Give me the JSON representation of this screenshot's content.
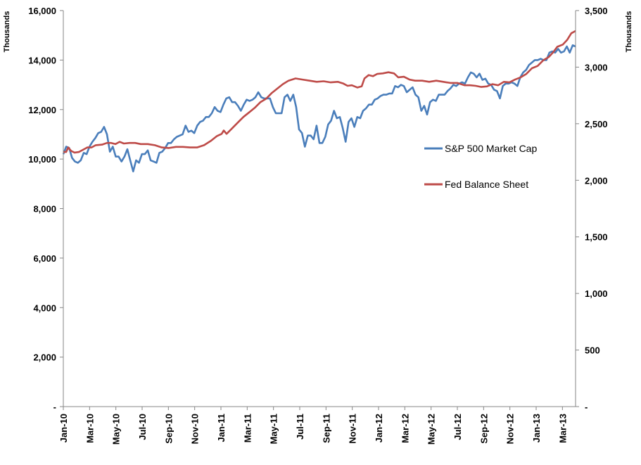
{
  "chart_data": {
    "type": "line",
    "title": "",
    "left_axis": {
      "label": "Thousands",
      "ylim": [
        0,
        16000
      ],
      "ticks": [
        "-",
        "2,000",
        "4,000",
        "6,000",
        "8,000",
        "10,000",
        "12,000",
        "14,000",
        "16,000"
      ],
      "tick_values": [
        0,
        2000,
        4000,
        6000,
        8000,
        10000,
        12000,
        14000,
        16000
      ]
    },
    "right_axis": {
      "label": "Thousands",
      "ylim": [
        0,
        3500
      ],
      "ticks": [
        "-",
        "500",
        "1,000",
        "1,500",
        "2,000",
        "2,500",
        "3,000",
        "3,500"
      ],
      "tick_values": [
        0,
        500,
        1000,
        1500,
        2000,
        2500,
        3000,
        3500
      ]
    },
    "x_tick_labels": [
      "Jan-10",
      "Mar-10",
      "May-10",
      "Jul-10",
      "Sep-10",
      "Nov-10",
      "Jan-11",
      "Mar-11",
      "May-11",
      "Jul-11",
      "Sep-11",
      "Nov-11",
      "Jan-12",
      "Mar-12",
      "May-12",
      "Jul-12",
      "Sep-12",
      "Nov-12",
      "Jan-13",
      "Mar-13"
    ],
    "x_range_months": [
      0,
      39
    ],
    "grid": false,
    "legend_position": "center-right",
    "series": [
      {
        "name": "S&P 500 Market Cap",
        "axis": "left",
        "color": "#4a7ebb",
        "values": [
          10200,
          10500,
          10450,
          10050,
          9900,
          9850,
          9950,
          10250,
          10200,
          10500,
          10700,
          10850,
          11050,
          11100,
          11300,
          11000,
          10300,
          10500,
          10100,
          10100,
          9900,
          10100,
          10400,
          9950,
          9500,
          9950,
          9850,
          10200,
          10200,
          10350,
          9950,
          9900,
          9850,
          10250,
          10300,
          10450,
          10650,
          10650,
          10800,
          10900,
          10950,
          11000,
          11350,
          11100,
          11150,
          11050,
          11350,
          11500,
          11550,
          11700,
          11700,
          11850,
          12100,
          11950,
          11900,
          12200,
          12450,
          12500,
          12300,
          12300,
          12150,
          11950,
          12200,
          12400,
          12350,
          12400,
          12500,
          12700,
          12500,
          12450,
          12450,
          12450,
          12100,
          11850,
          11850,
          11850,
          12500,
          12600,
          12350,
          12600,
          12100,
          11200,
          11050,
          10500,
          10950,
          10950,
          10800,
          11350,
          10650,
          10650,
          10900,
          11400,
          11550,
          11950,
          11650,
          11700,
          11250,
          10700,
          11500,
          11650,
          11300,
          11700,
          11650,
          11950,
          12050,
          12200,
          12200,
          12400,
          12450,
          12550,
          12600,
          12600,
          12650,
          12650,
          12950,
          12900,
          13000,
          12950,
          12700,
          12800,
          12900,
          12600,
          12500,
          11950,
          12150,
          11800,
          12300,
          12400,
          12350,
          12600,
          12600,
          12600,
          12750,
          12850,
          13000,
          12950,
          13050,
          13100,
          13050,
          13300,
          13500,
          13450,
          13300,
          13450,
          13200,
          13250,
          13050,
          13000,
          12800,
          12750,
          12450,
          12950,
          13050,
          13050,
          13100,
          13050,
          12950,
          13300,
          13500,
          13600,
          13800,
          13900,
          14000,
          14000,
          14050,
          14000,
          14000,
          14300,
          14350,
          14300,
          14450,
          14300,
          14350,
          14550,
          14300,
          14600,
          14550
        ]
      },
      {
        "name": "Fed Balance Sheet",
        "axis": "right",
        "color": "#be4b48",
        "points": [
          [
            0,
            2250
          ],
          [
            1,
            2250
          ],
          [
            1.75,
            2290
          ],
          [
            2.75,
            2260
          ],
          [
            4,
            2245
          ],
          [
            5.5,
            2250
          ],
          [
            7,
            2270
          ],
          [
            8.5,
            2290
          ],
          [
            10,
            2290
          ],
          [
            11.5,
            2310
          ],
          [
            13.75,
            2315
          ],
          [
            15.5,
            2330
          ],
          [
            17,
            2330
          ],
          [
            18.5,
            2320
          ],
          [
            20,
            2340
          ],
          [
            21.5,
            2325
          ],
          [
            23.5,
            2330
          ],
          [
            25.5,
            2330
          ],
          [
            27.5,
            2320
          ],
          [
            30,
            2320
          ],
          [
            32.5,
            2310
          ],
          [
            35,
            2290
          ],
          [
            37.5,
            2285
          ],
          [
            40,
            2295
          ],
          [
            42.5,
            2295
          ],
          [
            45,
            2290
          ],
          [
            47.5,
            2290
          ],
          [
            50,
            2310
          ],
          [
            52.5,
            2350
          ],
          [
            54.5,
            2390
          ],
          [
            56.25,
            2410
          ],
          [
            57,
            2440
          ],
          [
            58,
            2410
          ],
          [
            60,
            2460
          ],
          [
            62,
            2510
          ],
          [
            64,
            2560
          ],
          [
            66,
            2600
          ],
          [
            68,
            2640
          ],
          [
            70,
            2690
          ],
          [
            72,
            2720
          ],
          [
            74,
            2770
          ],
          [
            76,
            2810
          ],
          [
            78,
            2850
          ],
          [
            80,
            2880
          ],
          [
            82.5,
            2900
          ],
          [
            85,
            2890
          ],
          [
            87.5,
            2880
          ],
          [
            90,
            2870
          ],
          [
            92.5,
            2875
          ],
          [
            95,
            2865
          ],
          [
            97.5,
            2870
          ],
          [
            99.5,
            2855
          ],
          [
            101,
            2835
          ],
          [
            102.5,
            2840
          ],
          [
            104.5,
            2820
          ],
          [
            106,
            2830
          ],
          [
            107,
            2900
          ],
          [
            108.5,
            2930
          ],
          [
            110,
            2920
          ],
          [
            111.5,
            2940
          ],
          [
            113.5,
            2945
          ],
          [
            115.5,
            2955
          ],
          [
            117.5,
            2945
          ],
          [
            119,
            2910
          ],
          [
            121,
            2915
          ],
          [
            123,
            2890
          ],
          [
            125,
            2880
          ],
          [
            127.5,
            2880
          ],
          [
            130,
            2870
          ],
          [
            132.5,
            2880
          ],
          [
            135,
            2870
          ],
          [
            137.5,
            2860
          ],
          [
            140,
            2860
          ],
          [
            142.5,
            2840
          ],
          [
            144.5,
            2840
          ],
          [
            146.5,
            2835
          ],
          [
            148.5,
            2825
          ],
          [
            150.5,
            2830
          ],
          [
            152.5,
            2850
          ],
          [
            154.5,
            2840
          ],
          [
            156.5,
            2870
          ],
          [
            158.5,
            2865
          ],
          [
            160.5,
            2890
          ],
          [
            162.5,
            2910
          ],
          [
            164.5,
            2940
          ],
          [
            166.5,
            2990
          ],
          [
            168.5,
            3010
          ],
          [
            170.5,
            3060
          ],
          [
            172.5,
            3090
          ],
          [
            174,
            3130
          ],
          [
            175.5,
            3180
          ],
          [
            177.5,
            3200
          ],
          [
            179,
            3240
          ],
          [
            180.5,
            3300
          ],
          [
            182,
            3320
          ]
        ]
      }
    ]
  }
}
